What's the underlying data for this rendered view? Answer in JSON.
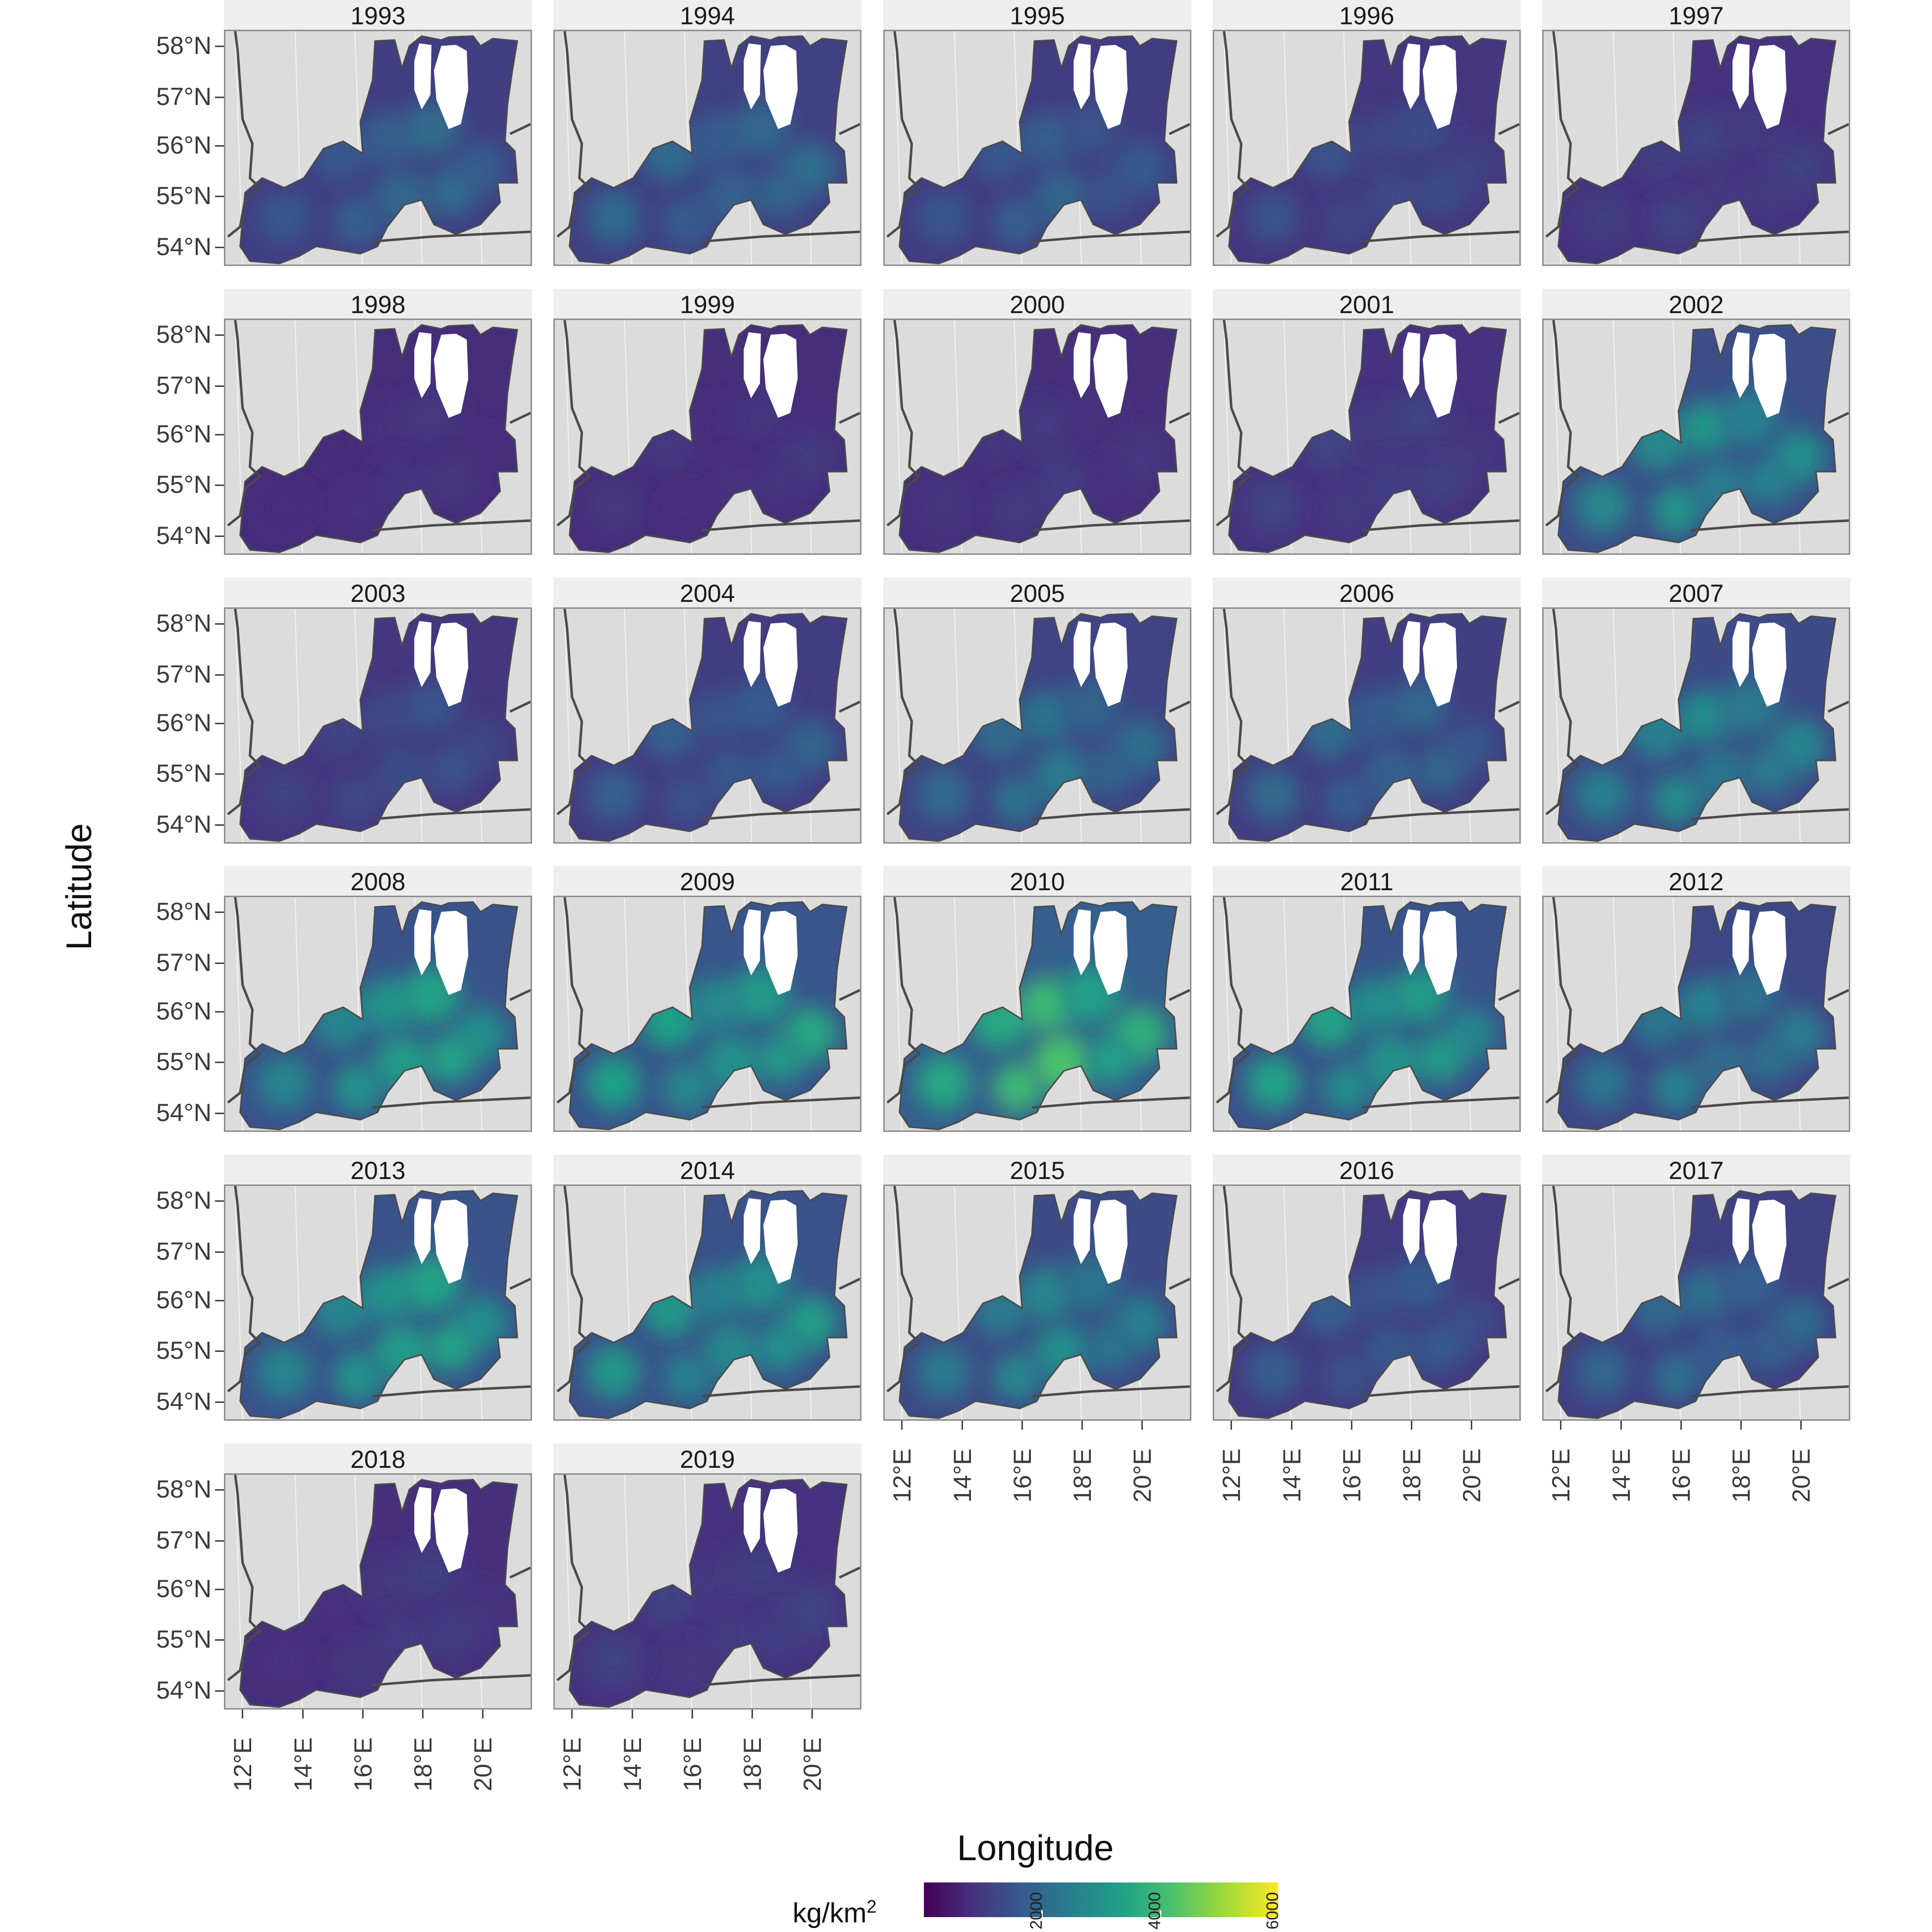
{
  "axes": {
    "x_title": "Longitude",
    "y_title": "Latitude",
    "y_ticks": [
      "58°N",
      "57°N",
      "56°N",
      "55°N",
      "54°N"
    ],
    "x_ticks": [
      "12°E",
      "14°E",
      "16°E",
      "18°E",
      "20°E"
    ]
  },
  "legend": {
    "title_base": "kg/km",
    "title_sup": "2",
    "ticks": [
      "2000",
      "4000",
      "6000"
    ],
    "colors": [
      "#440154",
      "#46327e",
      "#365c8d",
      "#277f8e",
      "#1fa187",
      "#4ac16d",
      "#a0da39",
      "#fde725"
    ]
  },
  "panels": [
    {
      "year": "1993",
      "level": 0.3
    },
    {
      "year": "1994",
      "level": 0.32
    },
    {
      "year": "1995",
      "level": 0.28
    },
    {
      "year": "1996",
      "level": 0.22
    },
    {
      "year": "1997",
      "level": 0.18
    },
    {
      "year": "1998",
      "level": 0.14
    },
    {
      "year": "1999",
      "level": 0.15
    },
    {
      "year": "2000",
      "level": 0.16
    },
    {
      "year": "2001",
      "level": 0.18
    },
    {
      "year": "2002",
      "level": 0.45
    },
    {
      "year": "2003",
      "level": 0.22
    },
    {
      "year": "2004",
      "level": 0.28
    },
    {
      "year": "2005",
      "level": 0.35
    },
    {
      "year": "2006",
      "level": 0.3
    },
    {
      "year": "2007",
      "level": 0.42
    },
    {
      "year": "2008",
      "level": 0.5
    },
    {
      "year": "2009",
      "level": 0.52
    },
    {
      "year": "2010",
      "level": 0.62
    },
    {
      "year": "2011",
      "level": 0.5
    },
    {
      "year": "2012",
      "level": 0.38
    },
    {
      "year": "2013",
      "level": 0.5
    },
    {
      "year": "2014",
      "level": 0.48
    },
    {
      "year": "2015",
      "level": 0.42
    },
    {
      "year": "2016",
      "level": 0.26
    },
    {
      "year": "2017",
      "level": 0.32
    },
    {
      "year": "2018",
      "level": 0.16
    },
    {
      "year": "2019",
      "level": 0.18
    }
  ]
}
